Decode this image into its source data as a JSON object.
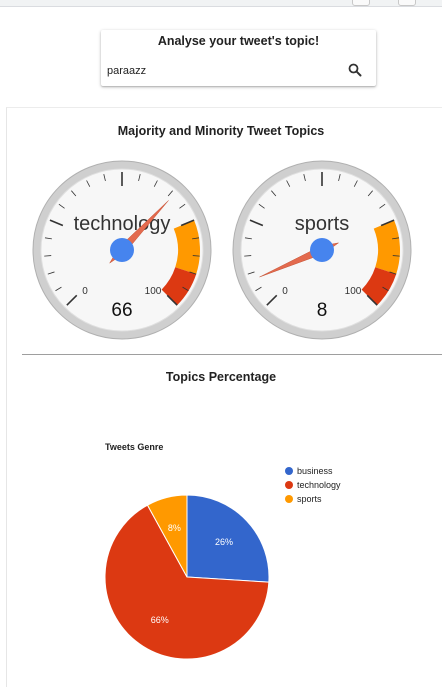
{
  "search": {
    "title": "Analyse your tweet's topic!",
    "value": "paraazz"
  },
  "gauges_section": {
    "title": "Majority and Minority Tweet Topics",
    "gauges": [
      {
        "label": "technology",
        "value": 66,
        "value_text": "66",
        "min_text": "0",
        "max_text": "100"
      },
      {
        "label": "sports",
        "value": 8,
        "value_text": "8",
        "min_text": "0",
        "max_text": "100"
      }
    ],
    "colors": {
      "needle": "#e36a4e",
      "hub": "#4684ee",
      "orange_band": "#ff9900",
      "red_band": "#dc3912"
    }
  },
  "pie_section": {
    "title": "Topics Percentage"
  },
  "chart_data": [
    {
      "type": "gauge",
      "min": 0,
      "max": 100,
      "bands": [
        {
          "from": 75,
          "to": 90,
          "color": "#ff9900"
        },
        {
          "from": 90,
          "to": 100,
          "color": "#dc3912"
        }
      ],
      "gauges": [
        {
          "label": "technology",
          "value": 66
        },
        {
          "label": "sports",
          "value": 8
        }
      ]
    },
    {
      "type": "pie",
      "title": "Tweets Genre",
      "legend_position": "right",
      "slices": [
        {
          "name": "business",
          "value": 26,
          "label": "26%",
          "color": "#3366cc"
        },
        {
          "name": "technology",
          "value": 66,
          "label": "66%",
          "color": "#dc3912"
        },
        {
          "name": "sports",
          "value": 8,
          "label": "8%",
          "color": "#ff9900"
        }
      ]
    }
  ]
}
